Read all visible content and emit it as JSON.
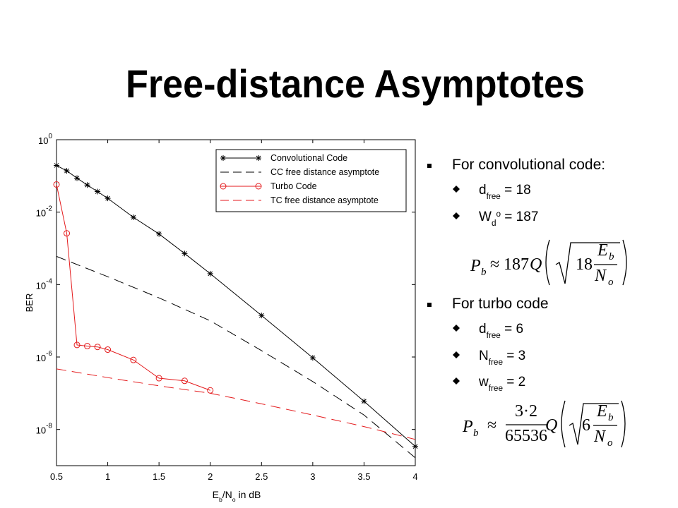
{
  "title": "Free-distance Asymptotes",
  "chart_data": {
    "type": "line",
    "xlabel": [
      {
        "text": "E"
      },
      {
        "text": "b",
        "pos": "sub"
      },
      {
        "text": "/N"
      },
      {
        "text": "o",
        "pos": "sub"
      },
      {
        "text": " in dB"
      }
    ],
    "ylabel": "BER",
    "xlim": [
      0.5,
      4
    ],
    "xticks": [
      0.5,
      1,
      1.5,
      2,
      2.5,
      3,
      3.5,
      4
    ],
    "ylim": [
      1e-09,
      1
    ],
    "yscale": "log",
    "yticks": [
      {
        "value": 1,
        "label": "10^0"
      },
      {
        "value": 0.01,
        "label": "10^-2"
      },
      {
        "value": 0.0001,
        "label": "10^-4"
      },
      {
        "value": 1e-06,
        "label": "10^-6"
      },
      {
        "value": 1e-08,
        "label": "10^-8"
      }
    ],
    "legend": "upper right",
    "series": [
      {
        "name": "Convolutional Code",
        "color": "#000000",
        "marker": "star",
        "dash": "solid",
        "x": [
          0.5,
          0.6,
          0.7,
          0.8,
          0.9,
          1.0,
          1.25,
          1.5,
          1.75,
          2.0,
          2.5,
          3.0,
          3.5,
          4.0
        ],
        "values": [
          0.195,
          0.138,
          0.087,
          0.056,
          0.037,
          0.024,
          0.0072,
          0.0025,
          0.00072,
          0.0002,
          1.4e-05,
          9.5e-07,
          6e-08,
          3.4e-09
        ]
      },
      {
        "name": "CC free distance asymptote",
        "color": "#000000",
        "marker": "none",
        "dash": "dashed",
        "x": [
          0.5,
          1.0,
          1.5,
          2.0,
          2.5,
          3.0,
          3.5,
          4.0
        ],
        "values": [
          0.0006,
          0.000165,
          4.3e-05,
          1e-05,
          1.5e-06,
          2.1e-07,
          2.5e-08,
          1.65e-09
        ]
      },
      {
        "name": "Turbo Code",
        "color": "#e41a1c",
        "marker": "circle",
        "dash": "solid",
        "x": [
          0.5,
          0.6,
          0.7,
          0.8,
          0.9,
          1.0,
          1.25,
          1.5,
          1.75,
          2.0
        ],
        "values": [
          0.058,
          0.0026,
          2.15e-06,
          2e-06,
          1.9e-06,
          1.6e-06,
          8.3e-07,
          2.6e-07,
          2.2e-07,
          1.2e-07
        ]
      },
      {
        "name": "TC free distance asymptote",
        "color": "#e41a1c",
        "marker": "none",
        "dash": "dashed",
        "x": [
          0.5,
          1.0,
          1.5,
          2.0,
          2.5,
          3.0,
          3.5,
          4.0
        ],
        "values": [
          4.7e-07,
          2.7e-07,
          1.6e-07,
          1e-07,
          5.1e-08,
          2.5e-08,
          1.2e-08,
          5.3e-09
        ]
      }
    ]
  },
  "bullets": [
    {
      "text": "For convolutional code:",
      "items": [
        [
          {
            "text": "d"
          },
          {
            "text": "free",
            "pos": "sub"
          },
          {
            "text": " = 18"
          }
        ],
        [
          {
            "text": "W"
          },
          {
            "text": "d",
            "pos": "sub"
          },
          {
            "text": "o",
            "pos": "super"
          },
          {
            "text": " = 187"
          }
        ]
      ]
    },
    {
      "text": "For turbo code",
      "items": [
        [
          {
            "text": "d"
          },
          {
            "text": "free",
            "pos": "sub"
          },
          {
            "text": " = 6"
          }
        ],
        [
          {
            "text": "N"
          },
          {
            "text": "free",
            "pos": "sub"
          },
          {
            "text": " = 3"
          }
        ],
        [
          {
            "text": "w"
          },
          {
            "text": "free",
            "pos": "sub"
          },
          {
            "text": " = 2"
          }
        ]
      ]
    }
  ],
  "formulas": [
    {
      "lhs": "P",
      "lhs_sub": "b",
      "rel": "≈",
      "coef": "187",
      "func": "Q",
      "factor": "18",
      "num": "E",
      "num_sub": "b",
      "den": "N",
      "den_sub": "o"
    },
    {
      "lhs": "P",
      "lhs_sub": "b",
      "rel": "≈",
      "coef_num": "3·2",
      "coef_den": "65536",
      "func": "Q",
      "factor": "6",
      "num": "E",
      "num_sub": "b",
      "den": "N",
      "den_sub": "o"
    }
  ]
}
